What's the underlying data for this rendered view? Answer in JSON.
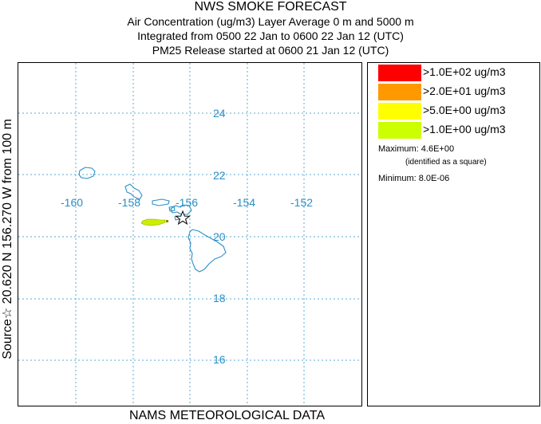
{
  "header": {
    "title": "NWS SMOKE FORECAST",
    "line2": "Air Concentration (ug/m3) Layer Average    0 m and  5000 m",
    "line3": "Integrated from 0500 22 Jan to 0600 22 Jan 12 (UTC)",
    "line4": "PM25 Release started at 0600 21 Jan 12 (UTC)"
  },
  "side_label": "Source☆ 20.620  N 156.270  W     from   100 m",
  "footer": "NAMS METEOROLOGICAL DATA",
  "map": {
    "lon_labels": [
      "-160",
      "-158",
      "-156",
      "-154",
      "-152"
    ],
    "lat_labels": [
      "24",
      "22",
      "20",
      "18",
      "16"
    ],
    "colors": {
      "grid": "#5aa9d6",
      "coast": "#2a8fc4",
      "plume": "#ccee00"
    }
  },
  "legend": {
    "items": [
      {
        "label": ">1.0E+02 ug/m3",
        "color": "#ff0000"
      },
      {
        "label": ">2.0E+01 ug/m3",
        "color": "#ff9900"
      },
      {
        "label": ">5.0E+00 ug/m3",
        "color": "#ffff00"
      },
      {
        "label": ">1.0E+00 ug/m3",
        "color": "#ccff00"
      }
    ],
    "maximum": "Maximum: 4.6E+00",
    "max_note": "(identified as a square)",
    "minimum": "Minimum: 8.0E-06"
  }
}
